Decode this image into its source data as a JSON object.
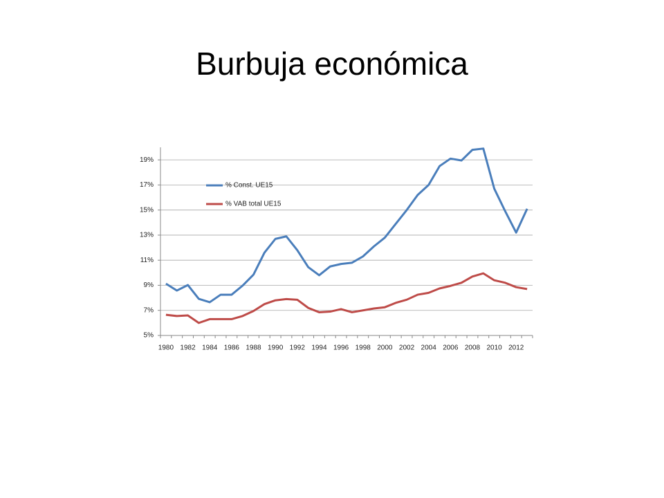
{
  "chart_data": {
    "type": "line",
    "title": "Burbuja económica",
    "categories": [
      "1980",
      null,
      "1982",
      null,
      "1984",
      null,
      "1986",
      null,
      "1988",
      null,
      "1990",
      null,
      "1992",
      null,
      "1994",
      null,
      "1996",
      null,
      "1998",
      null,
      "2000",
      null,
      "2002",
      null,
      "2004",
      null,
      "2006",
      null,
      "2008",
      null,
      "2010",
      null,
      "2012",
      null
    ],
    "series": [
      {
        "name": "% Const. UE15",
        "color": "#4a7ebb",
        "values": [
          9.13,
          8.58,
          9.02,
          7.92,
          7.65,
          8.25,
          8.25,
          8.97,
          9.85,
          11.6,
          12.7,
          12.9,
          11.8,
          10.45,
          9.8,
          10.5,
          10.7,
          10.8,
          11.3,
          12.1,
          12.8,
          13.9,
          15.0,
          16.2,
          17.0,
          18.5,
          19.1,
          18.95,
          19.8,
          19.9,
          16.7,
          14.9,
          13.2,
          15.1
        ]
      },
      {
        "name": "% VAB total UE15",
        "color": "#be4b48",
        "values": [
          6.65,
          6.55,
          6.6,
          6.0,
          6.3,
          6.3,
          6.3,
          6.55,
          6.95,
          7.5,
          7.8,
          7.9,
          7.85,
          7.2,
          6.85,
          6.9,
          7.1,
          6.85,
          7.0,
          7.15,
          7.25,
          7.6,
          7.85,
          8.25,
          8.4,
          8.75,
          8.95,
          9.2,
          9.7,
          9.95,
          9.4,
          9.2,
          8.85,
          8.7
        ]
      }
    ],
    "ylim": [
      5,
      20
    ],
    "yticks": [
      {
        "value": 5,
        "label": "5%"
      },
      {
        "value": 7,
        "label": "7%"
      },
      {
        "value": 9,
        "label": "9%"
      },
      {
        "value": 11,
        "label": "11%"
      },
      {
        "value": 13,
        "label": "13%"
      },
      {
        "value": 15,
        "label": "15%"
      },
      {
        "value": 17,
        "label": "17%"
      },
      {
        "value": 19,
        "label": "19%"
      }
    ],
    "grid": true,
    "legend": "upper-left"
  }
}
